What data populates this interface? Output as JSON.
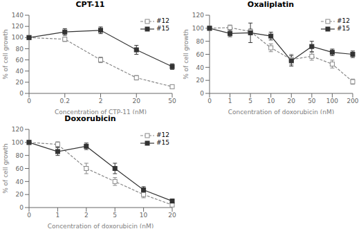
{
  "chart_data": [
    {
      "type": "line",
      "title": "CPT-11",
      "xlabel": "Concentration of CTP-11 (nM)",
      "ylabel": "% of cell growth",
      "categories": [
        "0",
        "0.2",
        "2",
        "20",
        "50"
      ],
      "series": [
        {
          "name": "#12",
          "color": "#888888",
          "values": [
            100,
            97,
            60,
            28,
            12
          ],
          "errors": [
            3,
            4,
            5,
            4,
            3
          ],
          "marker": "open_square",
          "line_style": "dashed"
        },
        {
          "name": "#15",
          "color": "#333333",
          "values": [
            100,
            110,
            113,
            78,
            48
          ],
          "errors": [
            3,
            6,
            6,
            8,
            5
          ],
          "marker": "square",
          "line_style": "solid"
        }
      ],
      "ylim": [
        0,
        140
      ],
      "yticks": [
        0,
        20,
        40,
        60,
        80,
        100,
        120,
        140
      ],
      "grid": false,
      "legend": "upper right"
    },
    {
      "type": "line",
      "title": "Oxaliplatin",
      "xlabel": "Concentration of doxorubicin (nM)",
      "ylabel": "% of cell growth",
      "categories": [
        "0",
        "1",
        "5",
        "10",
        "20",
        "50",
        "100",
        "200"
      ],
      "series": [
        {
          "name": "#12",
          "color": "#888888",
          "values": [
            100,
            101,
            95,
            70,
            52,
            57,
            45,
            18
          ],
          "errors": [
            3,
            4,
            4,
            6,
            8,
            6,
            6,
            4
          ],
          "marker": "open_square",
          "line_style": "dashed"
        },
        {
          "name": "#15",
          "color": "#333333",
          "values": [
            100,
            92,
            93,
            88,
            50,
            72,
            63,
            60
          ],
          "errors": [
            3,
            5,
            15,
            6,
            8,
            8,
            5,
            5
          ],
          "marker": "square",
          "line_style": "solid"
        }
      ],
      "ylim": [
        0,
        120
      ],
      "yticks": [
        0,
        20,
        40,
        60,
        80,
        100,
        120
      ],
      "grid": false,
      "legend": "upper right"
    },
    {
      "type": "line",
      "title": "Doxorubicin",
      "xlabel": "Concentration of doxorubicin (nM)",
      "ylabel": "% of cell growth",
      "categories": [
        "0",
        "1",
        "2",
        "5",
        "10",
        "20"
      ],
      "series": [
        {
          "name": "#12",
          "color": "#888888",
          "values": [
            100,
            97,
            60,
            40,
            20,
            4
          ],
          "errors": [
            3,
            4,
            8,
            6,
            5,
            2
          ],
          "marker": "open_square",
          "line_style": "dashed"
        },
        {
          "name": "#15",
          "color": "#333333",
          "values": [
            100,
            86,
            94,
            60,
            27,
            10
          ],
          "errors": [
            3,
            6,
            5,
            8,
            5,
            3
          ],
          "marker": "square",
          "line_style": "solid"
        }
      ],
      "ylim": [
        0,
        120
      ],
      "yticks": [
        0,
        20,
        40,
        60,
        80,
        100,
        120
      ],
      "grid": false,
      "legend": "upper right"
    }
  ]
}
